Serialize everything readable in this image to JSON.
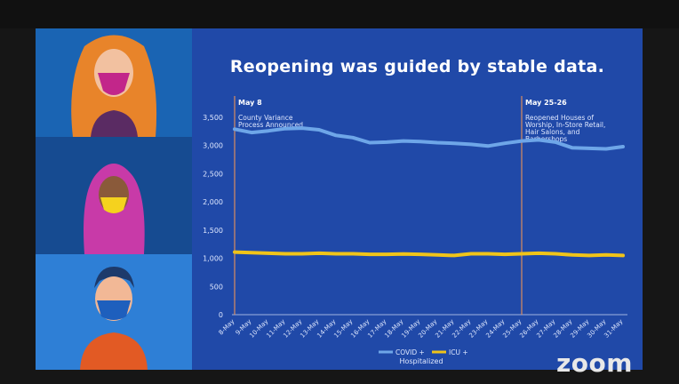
{
  "slide": {
    "title": "Reopening was guided by stable data."
  },
  "chart_data": {
    "type": "line",
    "title": "Reopening was guided by stable data.",
    "xlabel": "Hospitalized",
    "ylabel": "",
    "categories": [
      "8-May",
      "9-May",
      "10-May",
      "11-May",
      "12-May",
      "13-May",
      "14-May",
      "15-May",
      "16-May",
      "17-May",
      "18-May",
      "19-May",
      "20-May",
      "21-May",
      "22-May",
      "23-May",
      "24-May",
      "25-May",
      "26-May",
      "27-May",
      "28-May",
      "29-May",
      "30-May",
      "31-May"
    ],
    "ylim": [
      0,
      3500
    ],
    "yticks": [
      "0",
      "500",
      "1,000",
      "1,500",
      "2,000",
      "2,500",
      "3,000",
      "3,500"
    ],
    "ytick_values": [
      0,
      500,
      1000,
      1500,
      2000,
      2500,
      3000,
      3500
    ],
    "series": [
      {
        "name": "COVID +",
        "color": "#6ea6e8",
        "values": [
          3290,
          3230,
          3260,
          3300,
          3310,
          3280,
          3180,
          3140,
          3050,
          3060,
          3080,
          3070,
          3050,
          3040,
          3020,
          2990,
          3040,
          3080,
          3100,
          3060,
          2960,
          2950,
          2940,
          2980
        ]
      },
      {
        "name": "ICU +",
        "color": "#f0c419",
        "values": [
          1110,
          1100,
          1090,
          1080,
          1080,
          1090,
          1080,
          1080,
          1070,
          1070,
          1075,
          1070,
          1060,
          1050,
          1080,
          1080,
          1070,
          1080,
          1090,
          1080,
          1060,
          1050,
          1060,
          1050
        ]
      }
    ],
    "annotations": [
      {
        "date": "8-May",
        "heading": "May 8",
        "text": [
          "County Variance",
          "Process Announced"
        ]
      },
      {
        "date": "25-May",
        "heading": "May 25-26",
        "text": [
          "Reopened Houses of",
          "Worship, In-Store Retail,",
          "Hair Salons, and",
          "Barbershops"
        ]
      }
    ],
    "legend_position": "bottom",
    "grid": false
  },
  "brand": {
    "zoom_label": "zoom"
  },
  "colors": {
    "slide_bg": "#2049a8",
    "covid": "#6ea6e8",
    "icu": "#f0c419",
    "marker_line": "#d98c5f"
  }
}
